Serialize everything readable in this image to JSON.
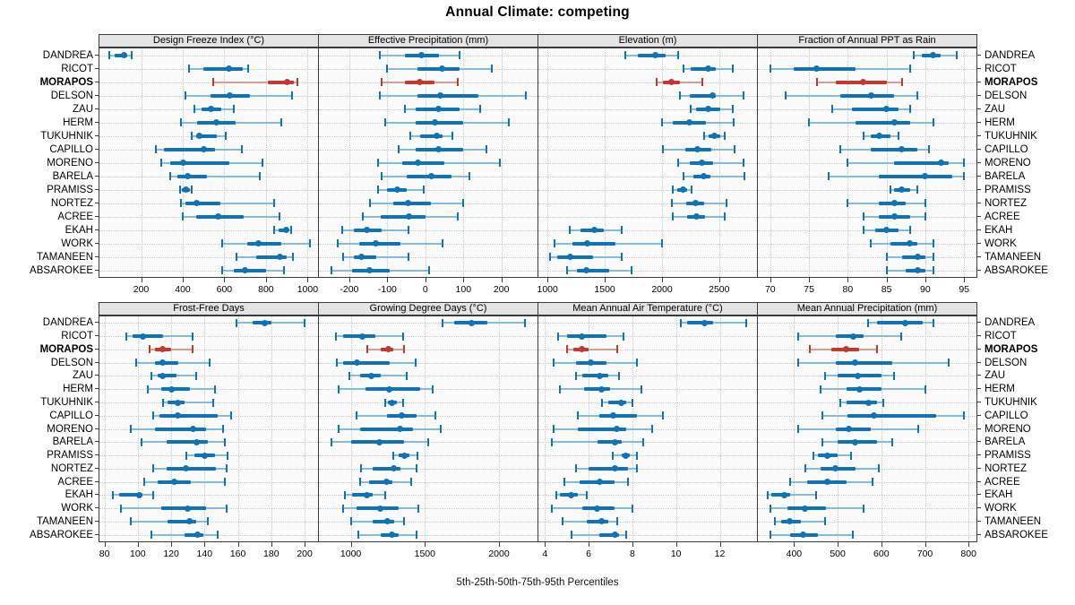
{
  "title": "Annual Climate: competing",
  "caption": "5th-25th-50th-75th-95th Percentiles",
  "highlight_site": "MORAPOS",
  "colors": {
    "series": "#1173b3",
    "series_light": "#85bcdc",
    "highlight": "#bf3a30",
    "highlight_light": "#dc9b94",
    "strip_bg": "#e4e4e4",
    "frame": "#3c3c3c",
    "grid": "#c8c8c8",
    "plot_bg": "#fbfbfb"
  },
  "chart_data": {
    "type": "dotplot-percentiles",
    "percentiles": [
      5,
      25,
      50,
      75,
      95
    ],
    "legend_note": "5th-25th-50th-75th-95th Percentiles",
    "grid": "dotted",
    "sites": [
      "DANDREA",
      "RICOT",
      "MORAPOS",
      "DELSON",
      "ZAU",
      "HERM",
      "TUKUHNIK",
      "CAPILLO",
      "MORENO",
      "BARELA",
      "PRAMISS",
      "NORTEZ",
      "ACREE",
      "EKAH",
      "WORK",
      "TAMANEEN",
      "ABSAROKEE"
    ],
    "panels": [
      {
        "title": "Design Freeze Index (°C)",
        "row": 0,
        "col": 0,
        "ticks": [
          200,
          400,
          600,
          800,
          1000
        ],
        "xlim": [
          0,
          1050
        ],
        "values": [
          [
            45,
            75,
            120,
            135,
            155
          ],
          [
            430,
            500,
            620,
            690,
            715
          ],
          [
            545,
            810,
            900,
            935,
            950
          ],
          [
            415,
            535,
            625,
            725,
            925
          ],
          [
            455,
            490,
            535,
            585,
            645
          ],
          [
            390,
            470,
            560,
            655,
            875
          ],
          [
            445,
            465,
            480,
            565,
            605
          ],
          [
            270,
            310,
            500,
            555,
            685
          ],
          [
            295,
            340,
            400,
            625,
            785
          ],
          [
            340,
            375,
            425,
            515,
            770
          ],
          [
            385,
            395,
            415,
            435,
            445
          ],
          [
            390,
            415,
            465,
            580,
            840
          ],
          [
            400,
            465,
            570,
            695,
            865
          ],
          [
            840,
            862,
            895,
            910,
            920
          ],
          [
            590,
            710,
            765,
            875,
            1010
          ],
          [
            660,
            755,
            865,
            900,
            930
          ],
          [
            590,
            645,
            700,
            800,
            885
          ]
        ]
      },
      {
        "title": "Effective Precipitation (mm)",
        "row": 0,
        "col": 1,
        "ticks": [
          -200,
          -100,
          0,
          100,
          200
        ],
        "xlim": [
          -280,
          295
        ],
        "values": [
          [
            -120,
            -55,
            -10,
            35,
            90
          ],
          [
            -100,
            -20,
            45,
            90,
            175
          ],
          [
            -115,
            -55,
            -15,
            25,
            85
          ],
          [
            -120,
            -20,
            40,
            140,
            265
          ],
          [
            -55,
            -25,
            35,
            90,
            145
          ],
          [
            -105,
            -25,
            25,
            100,
            220
          ],
          [
            -40,
            -15,
            30,
            45,
            70
          ],
          [
            -70,
            -25,
            35,
            100,
            160
          ],
          [
            -125,
            -60,
            -20,
            50,
            195
          ],
          [
            -115,
            -50,
            15,
            70,
            115
          ],
          [
            -125,
            -100,
            -75,
            -50,
            -5
          ],
          [
            -145,
            -85,
            -45,
            15,
            100
          ],
          [
            -165,
            -118,
            -43,
            0,
            85
          ],
          [
            -220,
            -188,
            -153,
            -115,
            -45
          ],
          [
            -230,
            -175,
            -130,
            -65,
            45
          ],
          [
            -217,
            -188,
            -168,
            -130,
            -45
          ],
          [
            -247,
            -194,
            -148,
            -94,
            10
          ]
        ]
      },
      {
        "title": "Elevation (m)",
        "row": 0,
        "col": 2,
        "ticks": [
          1000,
          1500,
          2000,
          2500
        ],
        "xlim": [
          920,
          2830
        ],
        "values": [
          [
            1680,
            1790,
            1940,
            2030,
            2140
          ],
          [
            2185,
            2250,
            2400,
            2470,
            2615
          ],
          [
            1950,
            2010,
            2080,
            2160,
            2355
          ],
          [
            2155,
            2245,
            2440,
            2470,
            2715
          ],
          [
            2250,
            2300,
            2400,
            2510,
            2615
          ],
          [
            2000,
            2095,
            2235,
            2385,
            2625
          ],
          [
            2370,
            2405,
            2460,
            2510,
            2550
          ],
          [
            2005,
            2200,
            2310,
            2430,
            2630
          ],
          [
            2140,
            2240,
            2350,
            2445,
            2715
          ],
          [
            2185,
            2270,
            2360,
            2425,
            2720
          ],
          [
            2090,
            2135,
            2180,
            2220,
            2260
          ],
          [
            2085,
            2210,
            2290,
            2370,
            2560
          ],
          [
            2090,
            2220,
            2300,
            2380,
            2545
          ],
          [
            1195,
            1285,
            1410,
            1490,
            1650
          ],
          [
            1060,
            1215,
            1350,
            1590,
            2000
          ],
          [
            1020,
            1085,
            1195,
            1395,
            1650
          ],
          [
            1170,
            1255,
            1335,
            1540,
            1730
          ]
        ]
      },
      {
        "title": "Fraction of Annual PPT as Rain",
        "row": 0,
        "col": 3,
        "ticks": [
          70,
          75,
          80,
          85,
          90,
          95
        ],
        "xlim": [
          68.4,
          96.6
        ],
        "values": [
          [
            88.5,
            89.5,
            91,
            92,
            94
          ],
          [
            70,
            73,
            76,
            81,
            88
          ],
          [
            76,
            78.5,
            82,
            85,
            87
          ],
          [
            72,
            79,
            83,
            86,
            89
          ],
          [
            78,
            80.5,
            85,
            86.5,
            88
          ],
          [
            75,
            81,
            86,
            88,
            91
          ],
          [
            82,
            83,
            84,
            85.5,
            86.5
          ],
          [
            79,
            83,
            87,
            89,
            90.5
          ],
          [
            80,
            86,
            92,
            93,
            95
          ],
          [
            77.5,
            84,
            90,
            93.5,
            95
          ],
          [
            85.5,
            86,
            87,
            88,
            89
          ],
          [
            80,
            84,
            86,
            87.5,
            90
          ],
          [
            82,
            84,
            86,
            88,
            90
          ],
          [
            82,
            83.5,
            85,
            86.5,
            88
          ],
          [
            83,
            85.5,
            88,
            89,
            91
          ],
          [
            85,
            87,
            89,
            90,
            91
          ],
          [
            85,
            87.5,
            89,
            90,
            91
          ]
        ]
      },
      {
        "title": "Frost-Free Days",
        "row": 1,
        "col": 0,
        "ticks": [
          80,
          100,
          120,
          140,
          160,
          180,
          200
        ],
        "xlim": [
          77,
          208
        ],
        "values": [
          [
            159,
            169,
            176,
            180,
            200
          ],
          [
            93,
            97,
            103,
            115,
            133
          ],
          [
            107,
            110,
            115,
            120,
            133
          ],
          [
            99,
            110,
            115,
            124,
            143
          ],
          [
            108,
            112,
            115,
            123,
            135
          ],
          [
            106,
            114,
            120,
            131,
            146
          ],
          [
            115,
            118,
            124,
            128,
            145
          ],
          [
            109,
            113,
            124,
            148,
            156
          ],
          [
            96,
            110,
            133,
            141,
            151
          ],
          [
            102,
            117,
            135,
            142,
            152
          ],
          [
            129,
            134,
            140,
            146,
            154
          ],
          [
            109,
            117,
            129,
            147,
            153
          ],
          [
            104,
            112,
            122,
            132,
            152
          ],
          [
            85,
            89,
            101,
            103,
            109
          ],
          [
            90,
            114,
            130,
            141,
            153
          ],
          [
            96,
            118,
            131,
            135,
            142
          ],
          [
            108,
            128,
            136,
            139,
            148
          ]
        ]
      },
      {
        "title": "Growing Degree Days (°C)",
        "row": 1,
        "col": 1,
        "ticks": [
          1000,
          1500,
          2000
        ],
        "xlim": [
          785,
          2260
        ],
        "values": [
          [
            1620,
            1700,
            1815,
            1920,
            2175
          ],
          [
            900,
            950,
            1080,
            1165,
            1355
          ],
          [
            1110,
            1200,
            1255,
            1285,
            1360
          ],
          [
            905,
            950,
            1040,
            1260,
            1440
          ],
          [
            990,
            1060,
            1140,
            1200,
            1375
          ],
          [
            920,
            1100,
            1260,
            1470,
            1550
          ],
          [
            1230,
            1250,
            1280,
            1310,
            1350
          ],
          [
            1040,
            1245,
            1345,
            1445,
            1570
          ],
          [
            920,
            1060,
            1330,
            1420,
            1605
          ],
          [
            870,
            1000,
            1190,
            1360,
            1520
          ],
          [
            1285,
            1320,
            1360,
            1395,
            1450
          ],
          [
            1070,
            1145,
            1290,
            1335,
            1445
          ],
          [
            1060,
            1125,
            1240,
            1280,
            1405
          ],
          [
            960,
            1010,
            1110,
            1150,
            1230
          ],
          [
            945,
            1040,
            1200,
            1325,
            1455
          ],
          [
            1000,
            1150,
            1245,
            1290,
            1360
          ],
          [
            1050,
            1200,
            1280,
            1320,
            1445
          ]
        ]
      },
      {
        "title": "Mean Annual Air Temperature (°C)",
        "row": 1,
        "col": 2,
        "ticks": [
          4,
          6,
          8,
          10,
          12
        ],
        "xlim": [
          3.7,
          13.7
        ],
        "values": [
          [
            10.2,
            10.5,
            11.3,
            11.7,
            13.2
          ],
          [
            4.6,
            5.0,
            5.7,
            6.8,
            7.6
          ],
          [
            5.0,
            5.3,
            5.7,
            6.0,
            7.3
          ],
          [
            4.4,
            5.4,
            6.1,
            6.8,
            8.2
          ],
          [
            5.4,
            5.7,
            6.5,
            6.9,
            7.4
          ],
          [
            4.7,
            5.8,
            6.6,
            7.0,
            8.4
          ],
          [
            6.6,
            6.9,
            7.5,
            7.7,
            8.0
          ],
          [
            5.5,
            6.5,
            7.1,
            8.2,
            9.4
          ],
          [
            4.4,
            5.5,
            7.3,
            7.7,
            8.9
          ],
          [
            4.3,
            6.4,
            7.2,
            7.5,
            8.5
          ],
          [
            7.1,
            7.5,
            7.7,
            7.9,
            8.2
          ],
          [
            5.4,
            6.0,
            7.2,
            7.8,
            8.2
          ],
          [
            4.9,
            5.6,
            6.5,
            7.2,
            7.8
          ],
          [
            4.5,
            4.7,
            5.2,
            5.5,
            5.9
          ],
          [
            4.3,
            5.7,
            6.4,
            7.2,
            8.0
          ],
          [
            4.8,
            5.9,
            6.6,
            6.9,
            7.3
          ],
          [
            5.2,
            6.5,
            7.2,
            7.4,
            7.7
          ]
        ]
      },
      {
        "title": "Mean Annual Precipitation (mm)",
        "row": 1,
        "col": 3,
        "ticks": [
          400,
          500,
          600,
          700,
          800
        ],
        "xlim": [
          317,
          818
        ],
        "values": [
          [
            570,
            590,
            655,
            695,
            720
          ],
          [
            410,
            495,
            535,
            560,
            645
          ],
          [
            435,
            485,
            520,
            550,
            590
          ],
          [
            410,
            495,
            540,
            625,
            755
          ],
          [
            470,
            500,
            545,
            600,
            630
          ],
          [
            460,
            520,
            550,
            600,
            700
          ],
          [
            505,
            520,
            570,
            590,
            605
          ],
          [
            465,
            523,
            583,
            725,
            790
          ],
          [
            410,
            495,
            525,
            575,
            685
          ],
          [
            465,
            500,
            540,
            590,
            625
          ],
          [
            445,
            455,
            475,
            500,
            530
          ],
          [
            425,
            460,
            495,
            540,
            595
          ],
          [
            390,
            430,
            475,
            520,
            580
          ],
          [
            340,
            348,
            377,
            390,
            450
          ],
          [
            345,
            385,
            425,
            473,
            560
          ],
          [
            355,
            370,
            390,
            415,
            470
          ],
          [
            345,
            390,
            420,
            455,
            535
          ]
        ]
      }
    ]
  }
}
